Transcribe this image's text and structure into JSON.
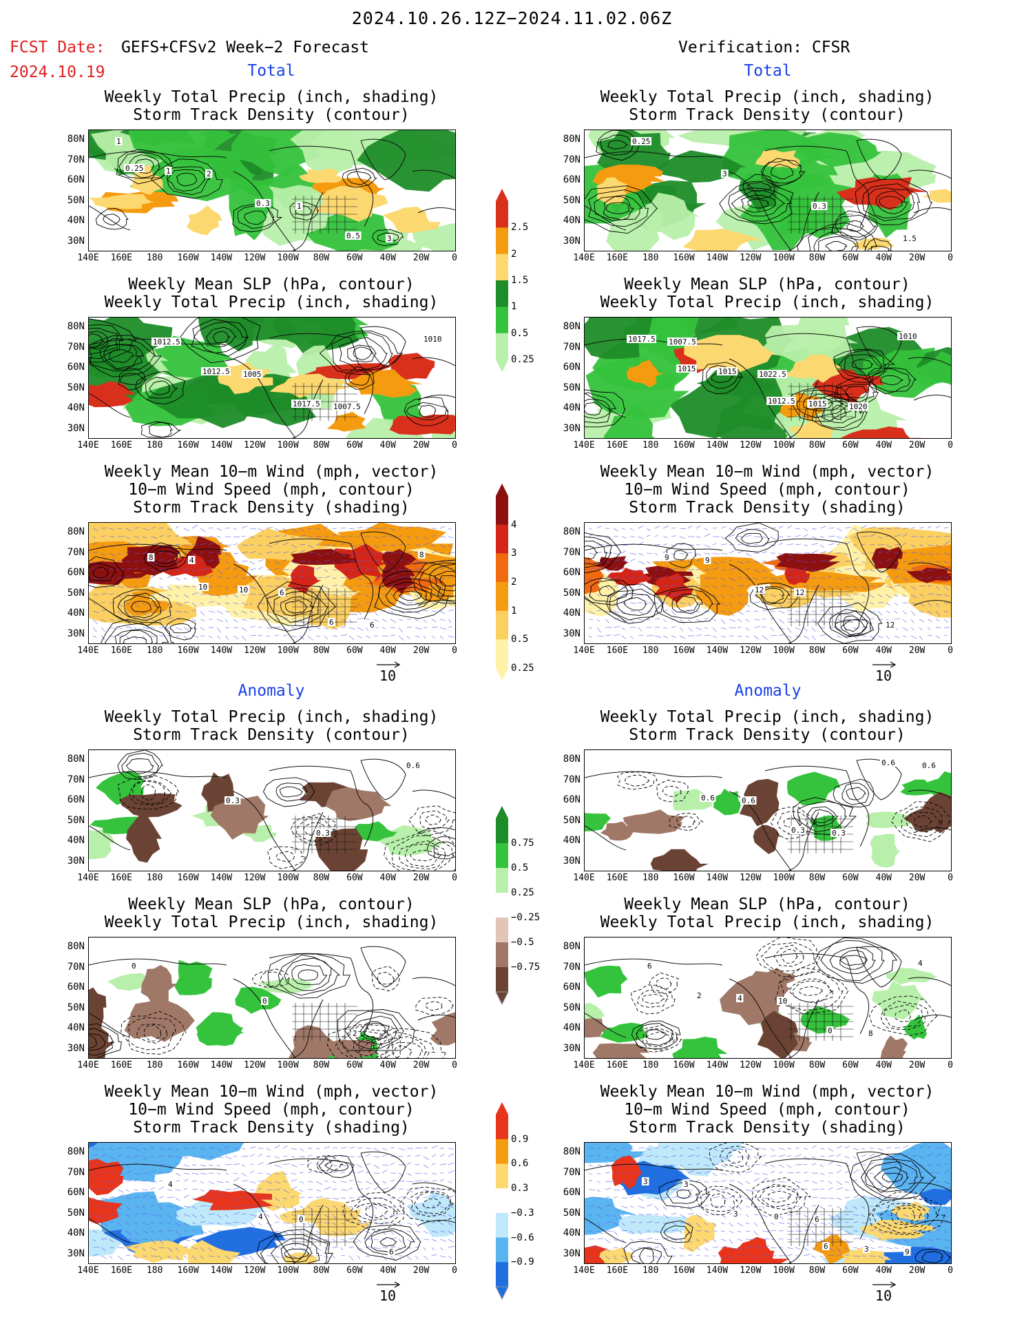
{
  "header": {
    "title": "2024.10.26.12Z−2024.11.02.06Z",
    "fcst_label": "FCST Date:",
    "fcst_date": "2024.10.19",
    "forecast_title": "GEFS+CFSv2 Week−2 Forecast",
    "verification_title": "Verification: CFSR"
  },
  "sections": {
    "total": "Total",
    "anomaly": "Anomaly"
  },
  "panel_titles": {
    "precip_storm": [
      "Weekly Total Precip (inch, shading)",
      "Storm Track Density (contour)"
    ],
    "slp_precip": [
      "Weekly Mean SLP (hPa, contour)",
      "Weekly Total Precip (inch, shading)"
    ],
    "wind_storm": [
      "Weekly Mean 10−m Wind (mph, vector)",
      "10−m Wind Speed (mph, contour)",
      "Storm Track Density (shading)"
    ]
  },
  "axes": {
    "lat_labels": [
      "80N",
      "70N",
      "60N",
      "50N",
      "40N",
      "30N"
    ],
    "lon_labels": [
      "140E",
      "160E",
      "180",
      "160W",
      "140W",
      "120W",
      "100W",
      "80W",
      "60W",
      "40W",
      "20W",
      "0"
    ]
  },
  "vector_reference": "10",
  "colorbars": {
    "total_precip": {
      "labels": [
        "2.5",
        "2",
        "1.5",
        "1",
        "0.5",
        "0.25"
      ],
      "colors": [
        "#d9301c",
        "#f59b10",
        "#fcd870",
        "#1e8c28",
        "#35c23c",
        "#b8efaa"
      ]
    },
    "total_storm": {
      "labels": [
        "4",
        "3",
        "2",
        "1",
        "0.5",
        "0.25"
      ],
      "colors": [
        "#8c1010",
        "#d42618",
        "#f06a10",
        "#f59b10",
        "#fcd060",
        "#fff2a8"
      ]
    },
    "anom_precip": {
      "labels": [
        "0.75",
        "0.5",
        "0.25",
        "−0.25",
        "−0.5",
        "−0.75"
      ],
      "colors": [
        "#1e8c28",
        "#35c23c",
        "#b8efaa",
        "#ffffff",
        "#e2c4b8",
        "#a07868",
        "#6b4334"
      ]
    },
    "anom_storm": {
      "labels": [
        "0.9",
        "0.6",
        "0.3",
        "−0.3",
        "−0.6",
        "−0.9"
      ],
      "colors": [
        "#e8341a",
        "#f59b10",
        "#fcd870",
        "#ffffff",
        "#bfe8fa",
        "#5ab4f0",
        "#1f6fe0"
      ]
    }
  },
  "contour_labels": {
    "fcst_total_precip": [
      "1",
      "2",
      "1",
      "3",
      "1",
      "0.3",
      "0.5",
      "0.25"
    ],
    "verif_total_precip": [
      "0.25",
      "3",
      "0.3",
      "1.5"
    ],
    "fcst_total_slp": [
      "1012.5",
      "1005",
      "1007.5",
      "1010",
      "1012.5",
      "1017.5"
    ],
    "verif_total_slp": [
      "1007.5",
      "1022.5",
      "1020",
      "1017.5",
      "1015",
      "1015",
      "1010",
      "1015",
      "1012.5"
    ],
    "fcst_total_wind": [
      "4",
      "6",
      "6",
      "8",
      "10",
      "6",
      "8",
      "10"
    ],
    "verif_total_wind": [
      "9",
      "12",
      "12",
      "9",
      "12"
    ],
    "fcst_anom_precip": [
      "0.3",
      "0.3",
      "0.6"
    ],
    "verif_anom_precip": [
      "0.6",
      "0.3",
      "0.6",
      "0.6",
      "0.3",
      "0.6"
    ],
    "fcst_anom_slp": [
      "0",
      "2",
      "0"
    ],
    "verif_anom_slp": [
      "10",
      "8",
      "6",
      "4",
      "0",
      "4",
      "2"
    ],
    "fcst_anom_wind": [
      "0",
      "6",
      "4",
      "4"
    ],
    "verif_anom_wind": [
      "6",
      "9",
      "3",
      "0",
      "3",
      "3",
      "3",
      "6"
    ]
  }
}
